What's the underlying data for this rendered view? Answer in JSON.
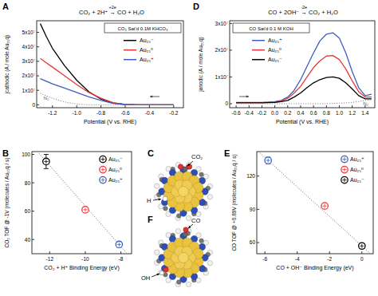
{
  "chart_data": [
    {
      "panel": "A",
      "type": "line",
      "title": "CO₂ + 2H⁺ → CO + H₂O",
      "annotations": [
        "+2e"
      ],
      "legend_title": "CO₂ Sat'd 0.1M KHCO₃",
      "legend": "upper right",
      "grid": false,
      "x_label": "Potential (V vs. RHE)",
      "y_label": "jcathodic (A / mole Au₂₅q)",
      "x": [
        -1.3,
        -1.25,
        -1.2,
        -1.1,
        -1.0,
        -0.9,
        -0.8,
        -0.7,
        -0.6,
        -0.5,
        -0.4,
        -0.3,
        -0.2
      ],
      "series": [
        {
          "name": "Au₂₅⁻",
          "color": "#000000",
          "values": [
            56000000,
            47000000,
            39000000,
            27000000,
            17000000,
            9000000,
            4000000,
            1200000,
            200000,
            0,
            0,
            0,
            0
          ]
        },
        {
          "name": "Au₂₅⁰",
          "color": "#e8373b",
          "values": [
            32000000,
            29000000,
            26000000,
            20000000,
            14000000,
            8500000,
            4500000,
            1500000,
            300000,
            0,
            0,
            0,
            0
          ]
        },
        {
          "name": "Au₂₅⁺",
          "color": "#3b5fc0",
          "values": [
            18000000,
            16200000,
            14500000,
            11500000,
            8500000,
            5500000,
            3000000,
            1000000,
            200000,
            0,
            0,
            0,
            0
          ]
        },
        {
          "name": "N₂",
          "color": "#888888",
          "line_style": "dotted",
          "values": [
            8000000,
            6200000,
            4500000,
            2000000,
            500000,
            0,
            0,
            0,
            0,
            0,
            0,
            0,
            0
          ]
        }
      ],
      "xlim": [
        -1.33,
        -0.12
      ],
      "ylim": [
        -2000000,
        58000000
      ],
      "xticks": [
        -1.2,
        {
          "value": -1.0,
          "label": "-1.0"
        },
        -0.8,
        -0.6,
        -0.4,
        -0.2
      ],
      "yticks": [
        0,
        {
          "value": 10000000,
          "label": "1x10⁷"
        },
        {
          "value": 20000000,
          "label": "2x10⁷"
        },
        {
          "value": 30000000,
          "label": "3x10⁷"
        },
        {
          "value": 40000000,
          "label": "4x10⁷"
        },
        {
          "value": 50000000,
          "label": "5x10⁷"
        }
      ]
    },
    {
      "panel": "D",
      "type": "line",
      "title": "CO + 2OH⁻ → CO₂ + H₂O",
      "annotations": [
        "-2e"
      ],
      "legend_title": "CO Sat'd 0.1 M KOH",
      "legend": "upper left",
      "grid": false,
      "x_label": "Potential (V vs. RHE)",
      "y_label": "janodic (A / mole Au₂₅q)",
      "x": [
        -0.6,
        -0.5,
        -0.4,
        -0.3,
        -0.2,
        -0.1,
        0,
        0.1,
        0.2,
        0.3,
        0.4,
        0.5,
        0.6,
        0.7,
        0.8,
        0.9,
        1.0,
        1.1,
        1.2,
        1.3,
        1.4,
        1.5
      ],
      "series": [
        {
          "name": "Au₂₅⁺",
          "color": "#3b5fc0",
          "values": [
            500000,
            500000,
            500000,
            500000,
            500000,
            600000,
            800000,
            1200000,
            2500000,
            5000000,
            9000000,
            14000000,
            19000000,
            23500000,
            26000000,
            26500000,
            24500000,
            19000000,
            12000000,
            6000000,
            3000000,
            3500000
          ]
        },
        {
          "name": "Au₂₅⁰",
          "color": "#e8373b",
          "values": [
            400000,
            400000,
            400000,
            400000,
            400000,
            500000,
            600000,
            1000000,
            2000000,
            4000000,
            6500000,
            10000000,
            13500000,
            16000000,
            17800000,
            18000000,
            16500000,
            13000000,
            8500000,
            4500000,
            2500000,
            2500000
          ]
        },
        {
          "name": "Au₂₅⁻",
          "color": "#000000",
          "values": [
            300000,
            300000,
            300000,
            300000,
            300000,
            400000,
            500000,
            800000,
            1200000,
            2500000,
            4000000,
            6000000,
            7800000,
            9000000,
            9800000,
            10000000,
            9500000,
            7800000,
            5500000,
            3000000,
            1800000,
            1800000
          ]
        },
        {
          "name": "N₂",
          "color": "#888888",
          "line_style": "dotted",
          "values": [
            0,
            0,
            0,
            0,
            0,
            0,
            0,
            0,
            0,
            0,
            0,
            0,
            0,
            0,
            0,
            100000,
            200000,
            300000,
            500000,
            800000,
            1200000,
            1500000
          ]
        }
      ],
      "xlim": [
        -0.7,
        1.55
      ],
      "ylim": [
        -1500000,
        31000000
      ],
      "xticks": [
        -0.6,
        -0.4,
        -0.2,
        {
          "value": 0,
          "label": "0.0"
        },
        0.2,
        0.4,
        0.6,
        0.8,
        {
          "value": 1,
          "label": "1.0"
        },
        1.2,
        1.4
      ],
      "yticks": [
        0,
        {
          "value": 10000000,
          "label": "1x10⁷"
        },
        {
          "value": 20000000,
          "label": "2x10⁷"
        },
        {
          "value": 30000000,
          "label": "3x10⁷"
        }
      ]
    },
    {
      "panel": "B",
      "type": "scatter",
      "marker": "circle_cross",
      "legend": "upper right",
      "grid": false,
      "x_label": "CO₂ + H⁺ Binding Energy (eV)",
      "y_label": "CO₂ TOF @ -1V (molecules / Au₂₅q / s)",
      "series": [
        {
          "name": "Au₂₅⁻",
          "color": "#000000",
          "x": [
            -12.2
          ],
          "values": [
            95
          ],
          "errors": [
            5
          ]
        },
        {
          "name": "Au₂₅⁰",
          "color": "#e8373b",
          "x": [
            -10
          ],
          "values": [
            61
          ],
          "errors": [
            2
          ]
        },
        {
          "name": "Au₂₅⁺",
          "color": "#3b5fc0",
          "x": [
            -8.1
          ],
          "values": [
            36.5
          ],
          "errors": [
            2
          ]
        }
      ],
      "fit": {
        "x": [
          -12.6,
          -7.7
        ],
        "values": [
          100.7,
          30.8
        ]
      },
      "xlim": [
        -13,
        -7.4
      ],
      "ylim": [
        30,
        102
      ],
      "xticks": [
        -12,
        -10,
        -8
      ],
      "yticks": [
        40,
        60,
        80,
        100
      ]
    },
    {
      "panel": "E",
      "type": "scatter",
      "marker": "circle_cross",
      "legend": "upper right",
      "grid": false,
      "x_label": "CO + OH⁻ Binding Energy (eV)",
      "y_label": "CO TOF @ +0.89V (molecules / Au₂₅q / s)",
      "series": [
        {
          "name": "Au₂₅⁺",
          "color": "#3b5fc0",
          "x": [
            -5.8
          ],
          "values": [
            134
          ],
          "errors": [
            3
          ]
        },
        {
          "name": "Au₂₅⁰",
          "color": "#e8373b",
          "x": [
            -2.3
          ],
          "values": [
            93
          ],
          "errors": [
            2
          ]
        },
        {
          "name": "Au₂₅⁻",
          "color": "#000000",
          "x": [
            0
          ],
          "values": [
            57
          ],
          "errors": [
            2
          ]
        }
      ],
      "fit": {
        "x": [
          -6.3,
          0.5
        ],
        "values": [
          140.7,
          50.4
        ]
      },
      "xlim": [
        -6.5,
        0.7
      ],
      "ylim": [
        50,
        142
      ],
      "xticks": [
        -6,
        -4,
        -2,
        0
      ],
      "yticks": [
        60,
        90,
        120
      ]
    }
  ],
  "diagrams": [
    {
      "panel": "C",
      "labels": [
        "CO₂",
        "H"
      ]
    },
    {
      "panel": "F",
      "labels": [
        "CO",
        "OH"
      ]
    }
  ]
}
